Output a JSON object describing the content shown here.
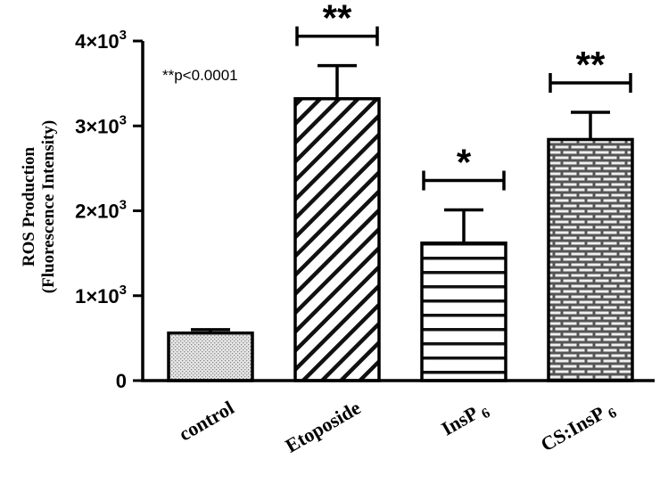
{
  "chart_data": {
    "type": "bar",
    "categories": [
      "control",
      "Etoposide",
      "InsP6",
      "CS:InsP6"
    ],
    "category_labels": [
      {
        "base": "control",
        "sub": ""
      },
      {
        "base": "Etoposide",
        "sub": ""
      },
      {
        "base": "InsP",
        "sub": "6"
      },
      {
        "base": "CS:InsP",
        "sub": "6"
      }
    ],
    "values": [
      560,
      3320,
      1620,
      2840
    ],
    "errors": [
      40,
      390,
      390,
      320
    ],
    "patterns": [
      "dots",
      "diagonal",
      "horizontal",
      "brick"
    ],
    "significance": [
      "",
      "**",
      "*",
      "**"
    ],
    "ylabel_line1": "ROS Production",
    "ylabel_line2": "(Fluorescence Intensity)",
    "ylim": [
      0,
      4000
    ],
    "yticks": [
      {
        "value": 0,
        "label": "0",
        "exp": ""
      },
      {
        "value": 1000,
        "label": "1×10",
        "exp": "3"
      },
      {
        "value": 2000,
        "label": "2×10",
        "exp": "3"
      },
      {
        "value": 3000,
        "label": "3×10",
        "exp": "3"
      },
      {
        "value": 4000,
        "label": "4×10",
        "exp": "3"
      }
    ],
    "annotation": "**p<0.0001",
    "grid": false
  }
}
